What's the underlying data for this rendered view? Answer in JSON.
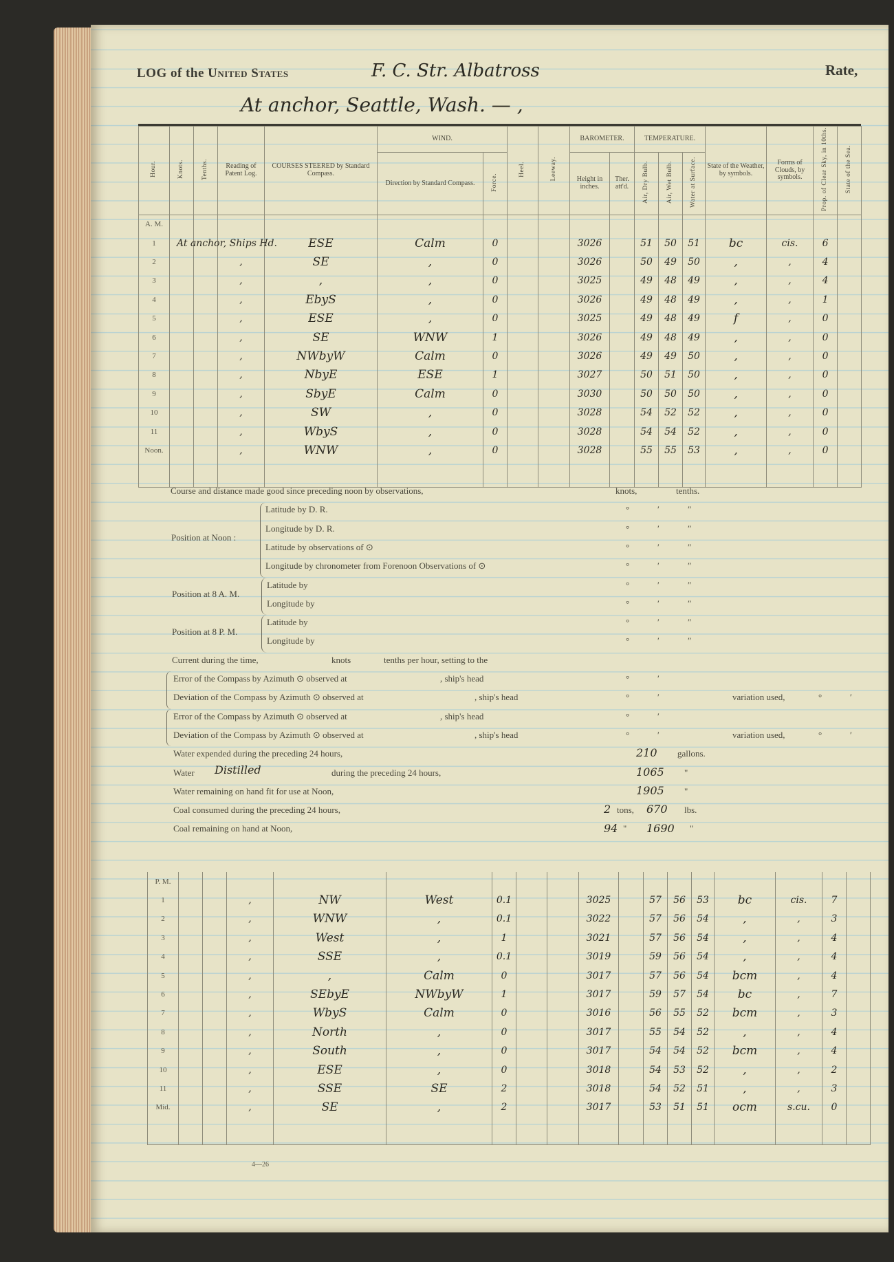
{
  "header": {
    "title_prefix": "LOG of the",
    "title_main": "United States",
    "vessel": "F. C. Str. Albatross",
    "rate_label": "Rate,",
    "location": "At anchor, Seattle, Wash. — ,"
  },
  "columns": {
    "hour": "Hour.",
    "knots": "Knots.",
    "tenths": "Tenths.",
    "patent_log": "Reading of Patent Log.",
    "courses": "COURSES STEERED by Standard Compass.",
    "wind": "WIND.",
    "wind_dir": "Direction by Standard Compass.",
    "force": "Force.",
    "heel": "Heel.",
    "leeway": "Leeway.",
    "barometer": "BAROMETER.",
    "baro_height": "Height in inches.",
    "ther_att": "Ther. att'd.",
    "temperature": "TEMPERATURE.",
    "dry": "Air, Dry Bulb.",
    "wet": "Air, Wet Bulb.",
    "water": "Water at Surface.",
    "weather": "State of the Weather, by symbols.",
    "clouds": "Forms of Clouds, by symbols.",
    "clear": "Prop. of Clear Sky, in 10ths.",
    "sea": "State of the Sea."
  },
  "am": {
    "label": "A. M.",
    "rows": [
      {
        "hour": "1",
        "log": "At anchor, Ships Hd.",
        "course": "ESE",
        "wind": "Calm",
        "force": "0",
        "baro": "3026",
        "dry": "51",
        "wet": "50",
        "water": "51",
        "weather": "bc",
        "clouds": "cis.",
        "clear": "6"
      },
      {
        "hour": "2",
        "log": ",",
        "course": "SE",
        "wind": ",",
        "force": "0",
        "baro": "3026",
        "dry": "50",
        "wet": "49",
        "water": "50",
        "weather": ",",
        "clouds": ",",
        "clear": "4"
      },
      {
        "hour": "3",
        "log": ",",
        "course": ",",
        "wind": ",",
        "force": "0",
        "baro": "3025",
        "dry": "49",
        "wet": "48",
        "water": "49",
        "weather": ",",
        "clouds": ",",
        "clear": "4"
      },
      {
        "hour": "4",
        "log": ",",
        "course": "EbyS",
        "wind": ",",
        "force": "0",
        "baro": "3026",
        "dry": "49",
        "wet": "48",
        "water": "49",
        "weather": ",",
        "clouds": ",",
        "clear": "1"
      },
      {
        "hour": "5",
        "log": ",",
        "course": "ESE",
        "wind": ",",
        "force": "0",
        "baro": "3025",
        "dry": "49",
        "wet": "48",
        "water": "49",
        "weather": "f",
        "clouds": ",",
        "clear": "0"
      },
      {
        "hour": "6",
        "log": ",",
        "course": "SE",
        "wind": "WNW",
        "force": "1",
        "baro": "3026",
        "dry": "49",
        "wet": "48",
        "water": "49",
        "weather": ",",
        "clouds": ",",
        "clear": "0"
      },
      {
        "hour": "7",
        "log": ",",
        "course": "NWbyW",
        "wind": "Calm",
        "force": "0",
        "baro": "3026",
        "dry": "49",
        "wet": "49",
        "water": "50",
        "weather": ",",
        "clouds": ",",
        "clear": "0"
      },
      {
        "hour": "8",
        "log": ",",
        "course": "NbyE",
        "wind": "ESE",
        "force": "1",
        "baro": "3027",
        "dry": "50",
        "wet": "51",
        "water": "50",
        "weather": ",",
        "clouds": ",",
        "clear": "0"
      },
      {
        "hour": "9",
        "log": ",",
        "course": "SbyE",
        "wind": "Calm",
        "force": "0",
        "baro": "3030",
        "dry": "50",
        "wet": "50",
        "water": "50",
        "weather": ",",
        "clouds": ",",
        "clear": "0"
      },
      {
        "hour": "10",
        "log": ",",
        "course": "SW",
        "wind": ",",
        "force": "0",
        "baro": "3028",
        "dry": "54",
        "wet": "52",
        "water": "52",
        "weather": ",",
        "clouds": ",",
        "clear": "0"
      },
      {
        "hour": "11",
        "log": ",",
        "course": "WbyS",
        "wind": ",",
        "force": "0",
        "baro": "3028",
        "dry": "54",
        "wet": "54",
        "water": "52",
        "weather": ",",
        "clouds": ",",
        "clear": "0"
      },
      {
        "hour": "Noon.",
        "log": ",",
        "course": "WNW",
        "wind": ",",
        "force": "0",
        "baro": "3028",
        "dry": "55",
        "wet": "55",
        "water": "53",
        "weather": ",",
        "clouds": ",",
        "clear": "0"
      }
    ]
  },
  "pm": {
    "label": "P. M.",
    "rows": [
      {
        "hour": "1",
        "log": ",",
        "course": "NW",
        "wind": "West",
        "force": "0.1",
        "baro": "3025",
        "dry": "57",
        "wet": "56",
        "water": "53",
        "weather": "bc",
        "clouds": "cis.",
        "clear": "7"
      },
      {
        "hour": "2",
        "log": ",",
        "course": "WNW",
        "wind": ",",
        "force": "0.1",
        "baro": "3022",
        "dry": "57",
        "wet": "56",
        "water": "54",
        "weather": ",",
        "clouds": ",",
        "clear": "3"
      },
      {
        "hour": "3",
        "log": ",",
        "course": "West",
        "wind": ",",
        "force": "1",
        "baro": "3021",
        "dry": "57",
        "wet": "56",
        "water": "54",
        "weather": ",",
        "clouds": ",",
        "clear": "4"
      },
      {
        "hour": "4",
        "log": ",",
        "course": "SSE",
        "wind": ",",
        "force": "0.1",
        "baro": "3019",
        "dry": "59",
        "wet": "56",
        "water": "54",
        "weather": ",",
        "clouds": ",",
        "clear": "4"
      },
      {
        "hour": "5",
        "log": ",",
        "course": ",",
        "wind": "Calm",
        "force": "0",
        "baro": "3017",
        "dry": "57",
        "wet": "56",
        "water": "54",
        "weather": "bcm",
        "clouds": ",",
        "clear": "4"
      },
      {
        "hour": "6",
        "log": ",",
        "course": "SEbyE",
        "wind": "NWbyW",
        "force": "1",
        "baro": "3017",
        "dry": "59",
        "wet": "57",
        "water": "54",
        "weather": "bc",
        "clouds": ",",
        "clear": "7"
      },
      {
        "hour": "7",
        "log": ",",
        "course": "WbyS",
        "wind": "Calm",
        "force": "0",
        "baro": "3016",
        "dry": "56",
        "wet": "55",
        "water": "52",
        "weather": "bcm",
        "clouds": ",",
        "clear": "3"
      },
      {
        "hour": "8",
        "log": ",",
        "course": "North",
        "wind": ",",
        "force": "0",
        "baro": "3017",
        "dry": "55",
        "wet": "54",
        "water": "52",
        "weather": ",",
        "clouds": ",",
        "clear": "4"
      },
      {
        "hour": "9",
        "log": ",",
        "course": "South",
        "wind": ",",
        "force": "0",
        "baro": "3017",
        "dry": "54",
        "wet": "54",
        "water": "52",
        "weather": "bcm",
        "clouds": ",",
        "clear": "4"
      },
      {
        "hour": "10",
        "log": ",",
        "course": "ESE",
        "wind": ",",
        "force": "0",
        "baro": "3018",
        "dry": "54",
        "wet": "53",
        "water": "52",
        "weather": ",",
        "clouds": ",",
        "clear": "2"
      },
      {
        "hour": "11",
        "log": ",",
        "course": "SSE",
        "wind": "SE",
        "force": "2",
        "baro": "3018",
        "dry": "54",
        "wet": "52",
        "water": "51",
        "weather": ",",
        "clouds": ",",
        "clear": "3"
      },
      {
        "hour": "Mid.",
        "log": ",",
        "course": "SE",
        "wind": ",",
        "force": "2",
        "baro": "3017",
        "dry": "53",
        "wet": "51",
        "water": "51",
        "weather": "ocm",
        "clouds": "s.cu.",
        "clear": "0"
      }
    ]
  },
  "summary": {
    "course_distance": "Course and distance made good since preceding noon by observations,",
    "knots": "knots,",
    "tenths": "tenths.",
    "deg": "°",
    "min": "′",
    "sec": "″",
    "noon_label": "Position at Noon :",
    "lat_dr": "Latitude by D. R.",
    "lon_dr": "Longitude by D. R.",
    "lat_obs": "Latitude by observations of ⊙",
    "lon_chron": "Longitude by chronometer from Forenoon Observations of ⊙",
    "am8_label": "Position at 8 A. M.",
    "pm8_label": "Position at 8 P. M.",
    "lat_by": "Latitude by",
    "lon_by": "Longitude by",
    "current_a": "Current during the time,",
    "current_b": "knots",
    "current_c": "tenths per hour, setting to the",
    "error": "Error of the Compass by Azimuth ⊙ observed at",
    "deviation": "Deviation of the Compass by Azimuth ⊙ observed at",
    "ships_head": ", ship's head",
    "variation": "variation used,",
    "water_expended": "Water expended during the preceding 24 hours,",
    "water_expended_value": "210",
    "gallons": "gallons.",
    "water_word": "Water",
    "water_distilled_word": "Distilled",
    "water_distilled_rest": "during the preceding 24 hours,",
    "water_distilled_value": "1065",
    "water_remaining": "Water remaining on hand fit for use at Noon,",
    "water_remaining_value": "1905",
    "ditto": "\"",
    "coal_consumed": "Coal consumed during the preceding 24 hours,",
    "coal_consumed_tons": "2",
    "tons": "tons,",
    "coal_consumed_lbs": "670",
    "lbs": "lbs.",
    "coal_remaining": "Coal remaining on hand at Noon,",
    "coal_remaining_tons": "94",
    "coal_remaining_lbs": "1690"
  },
  "footer": {
    "form_number": "4—26"
  }
}
